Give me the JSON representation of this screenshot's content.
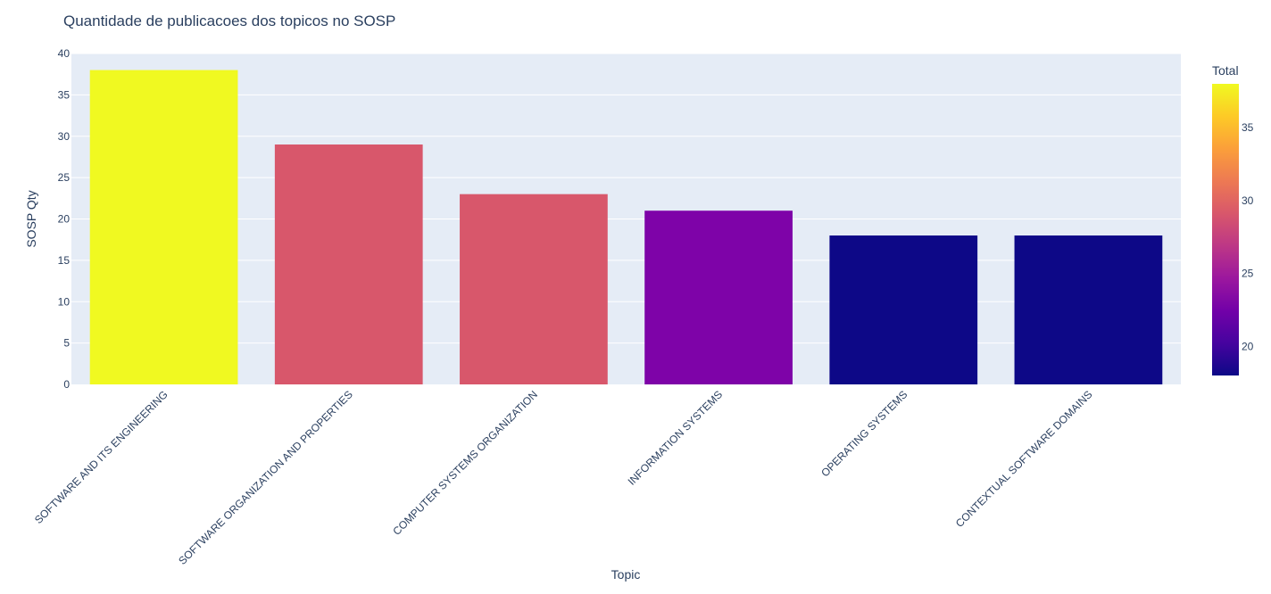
{
  "chart_data": {
    "type": "bar",
    "title": "Quantidade de publicacoes dos topicos no SOSP",
    "xlabel": "Topic",
    "ylabel": "SOSP  Qty",
    "categories": [
      "SOFTWARE AND ITS ENGINEERING",
      "SOFTWARE ORGANIZATION AND PROPERTIES",
      "COMPUTER SYSTEMS ORGANIZATION",
      "INFORMATION SYSTEMS",
      "OPERATING SYSTEMS",
      "CONTEXTUAL SOFTWARE DOMAINS"
    ],
    "values": [
      38,
      29,
      23,
      21,
      18,
      18
    ],
    "bar_colors": [
      "#f0f921",
      "#d8576b",
      "#d8576b",
      "#7e03a8",
      "#0d0887",
      "#0d0887"
    ],
    "ylim": [
      0,
      40
    ],
    "yticks": [
      0,
      5,
      10,
      15,
      20,
      25,
      30,
      35,
      40
    ],
    "grid": true,
    "plot_background": "#e5ecf6",
    "colorbar": {
      "title": "Total",
      "range": [
        18,
        38
      ],
      "ticks": [
        20,
        25,
        30,
        35
      ],
      "colorscale": [
        "#0d0887",
        "#46039f",
        "#7201a8",
        "#9c179e",
        "#bd3786",
        "#d8576b",
        "#ed7953",
        "#fb9f3a",
        "#fdca26",
        "#f0f921"
      ],
      "placement": "right"
    }
  }
}
